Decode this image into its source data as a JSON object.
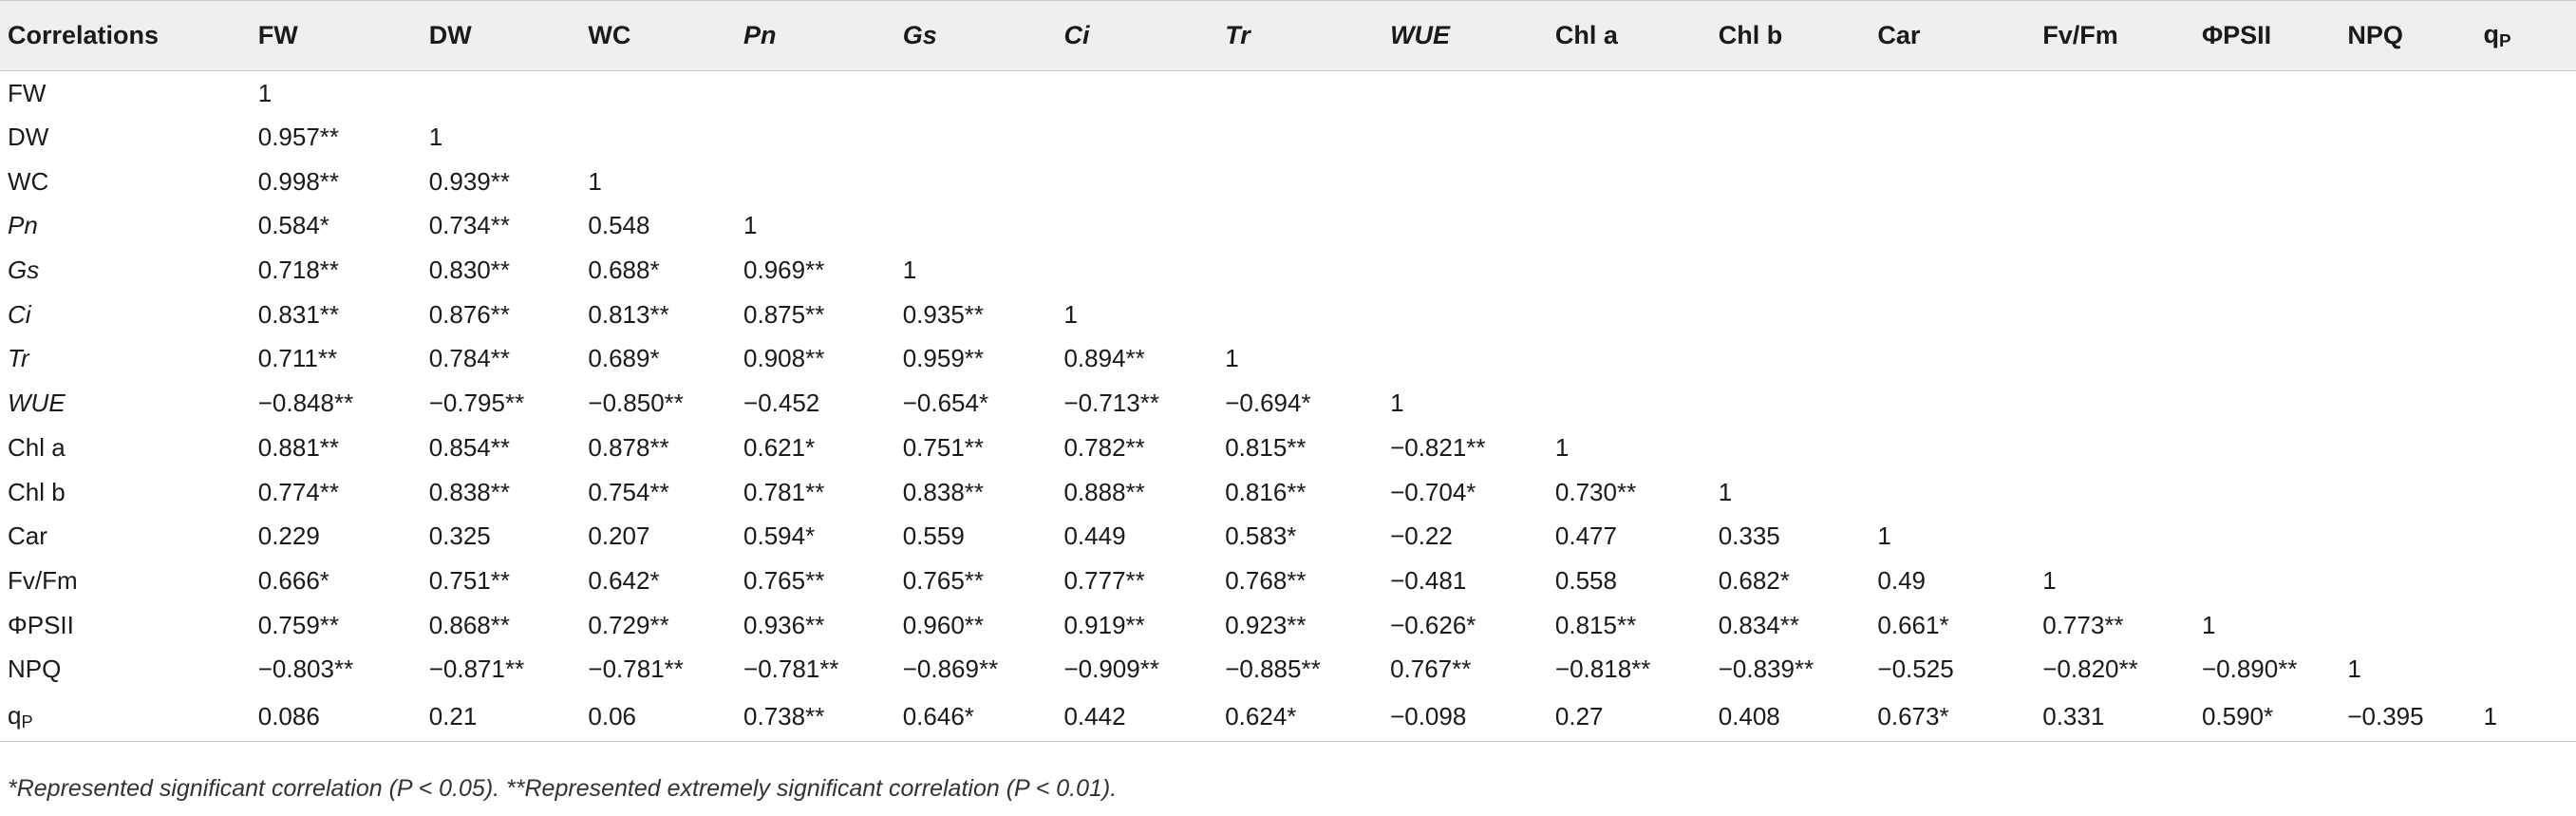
{
  "table": {
    "corner": "Correlations",
    "columns": [
      "FW",
      "DW",
      "WC",
      "Pn",
      "Gs",
      "Ci",
      "Tr",
      "WUE",
      "Chl a",
      "Chl b",
      "Car",
      "Fv/Fm",
      "ΦPSII",
      "NPQ",
      "qP"
    ],
    "rows": [
      {
        "label": "FW",
        "cells": [
          "1",
          "",
          "",
          "",
          "",
          "",
          "",
          "",
          "",
          "",
          "",
          "",
          "",
          "",
          ""
        ]
      },
      {
        "label": "DW",
        "cells": [
          "0.957**",
          "1",
          "",
          "",
          "",
          "",
          "",
          "",
          "",
          "",
          "",
          "",
          "",
          "",
          ""
        ]
      },
      {
        "label": "WC",
        "cells": [
          "0.998**",
          "0.939**",
          "1",
          "",
          "",
          "",
          "",
          "",
          "",
          "",
          "",
          "",
          "",
          "",
          ""
        ]
      },
      {
        "label": "Pn",
        "cells": [
          "0.584*",
          "0.734**",
          "0.548",
          "1",
          "",
          "",
          "",
          "",
          "",
          "",
          "",
          "",
          "",
          "",
          ""
        ]
      },
      {
        "label": "Gs",
        "cells": [
          "0.718**",
          "0.830**",
          "0.688*",
          "0.969**",
          "1",
          "",
          "",
          "",
          "",
          "",
          "",
          "",
          "",
          "",
          ""
        ]
      },
      {
        "label": "Ci",
        "cells": [
          "0.831**",
          "0.876**",
          "0.813**",
          "0.875**",
          "0.935**",
          "1",
          "",
          "",
          "",
          "",
          "",
          "",
          "",
          "",
          ""
        ]
      },
      {
        "label": "Tr",
        "cells": [
          "0.711**",
          "0.784**",
          "0.689*",
          "0.908**",
          "0.959**",
          "0.894**",
          "1",
          "",
          "",
          "",
          "",
          "",
          "",
          "",
          ""
        ]
      },
      {
        "label": "WUE",
        "cells": [
          "−0.848**",
          "−0.795**",
          "−0.850**",
          "−0.452",
          "−0.654*",
          "−0.713**",
          "−0.694*",
          "1",
          "",
          "",
          "",
          "",
          "",
          "",
          ""
        ]
      },
      {
        "label": "Chl a",
        "cells": [
          "0.881**",
          "0.854**",
          "0.878**",
          "0.621*",
          "0.751**",
          "0.782**",
          "0.815**",
          "−0.821**",
          "1",
          "",
          "",
          "",
          "",
          "",
          ""
        ]
      },
      {
        "label": "Chl b",
        "cells": [
          "0.774**",
          "0.838**",
          "0.754**",
          "0.781**",
          "0.838**",
          "0.888**",
          "0.816**",
          "−0.704*",
          "0.730**",
          "1",
          "",
          "",
          "",
          "",
          ""
        ]
      },
      {
        "label": "Car",
        "cells": [
          "0.229",
          "0.325",
          "0.207",
          "0.594*",
          "0.559",
          "0.449",
          "0.583*",
          "−0.22",
          "0.477",
          "0.335",
          "1",
          "",
          "",
          "",
          ""
        ]
      },
      {
        "label": "Fv/Fm",
        "cells": [
          "0.666*",
          "0.751**",
          "0.642*",
          "0.765**",
          "0.765**",
          "0.777**",
          "0.768**",
          "−0.481",
          "0.558",
          "0.682*",
          "0.49",
          "1",
          "",
          "",
          ""
        ]
      },
      {
        "label": "ΦPSII",
        "cells": [
          "0.759**",
          "0.868**",
          "0.729**",
          "0.936**",
          "0.960**",
          "0.919**",
          "0.923**",
          "−0.626*",
          "0.815**",
          "0.834**",
          "0.661*",
          "0.773**",
          "1",
          "",
          ""
        ]
      },
      {
        "label": "NPQ",
        "cells": [
          "−0.803**",
          "−0.871**",
          "−0.781**",
          "−0.781**",
          "−0.869**",
          "−0.909**",
          "−0.885**",
          "0.767**",
          "−0.818**",
          "−0.839**",
          "−0.525",
          "−0.820**",
          "−0.890**",
          "1",
          ""
        ]
      },
      {
        "label": "qP",
        "cells": [
          "0.086",
          "0.21",
          "0.06",
          "0.738**",
          "0.646*",
          "0.442",
          "0.624*",
          "−0.098",
          "0.27",
          "0.408",
          "0.673*",
          "0.331",
          "0.590*",
          "−0.395",
          "1"
        ]
      }
    ]
  },
  "footnote": "*Represented significant correlation (P < 0.05). **Represented extremely significant correlation (P < 0.01)."
}
